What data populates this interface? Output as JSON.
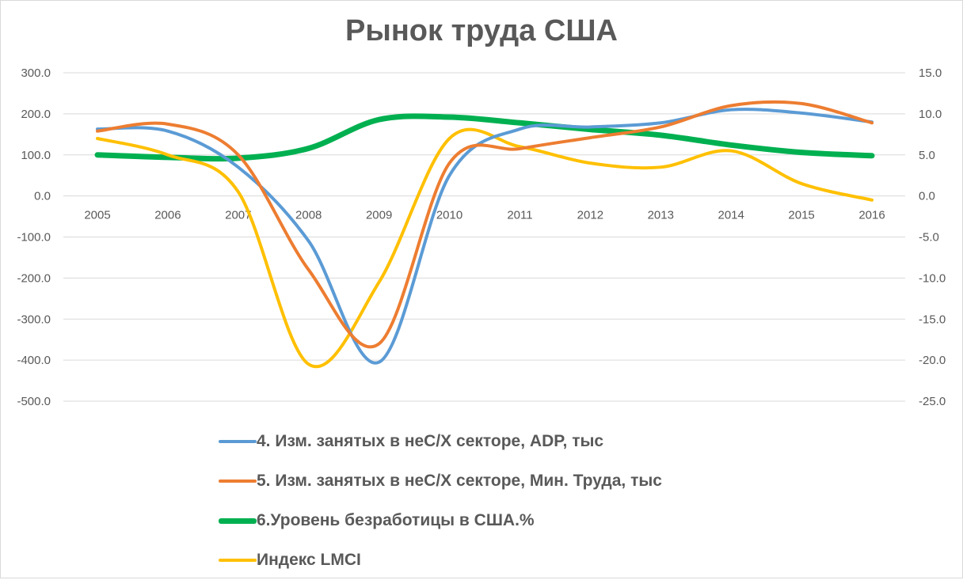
{
  "chart_data": {
    "type": "line",
    "title": "Рынок труда США",
    "categories": [
      "2005",
      "2006",
      "2007",
      "2008",
      "2009",
      "2010",
      "2011",
      "2012",
      "2013",
      "2014",
      "2015",
      "2016"
    ],
    "y_left": {
      "ylim": [
        -500,
        300
      ],
      "ticks": [
        "300.0",
        "200.0",
        "100.0",
        "0.0",
        "-100.0",
        "-200.0",
        "-300.0",
        "-400.0",
        "-500.0"
      ]
    },
    "y_right": {
      "ylim": [
        -25,
        15
      ],
      "ticks": [
        "15.0",
        "10.0",
        "5.0",
        "0.0",
        "-5.0",
        "-10.0",
        "-15.0",
        "-20.0",
        "-25.0"
      ]
    },
    "grid": true,
    "legend_position": "bottom",
    "series": [
      {
        "name": "4. Изм. занятых в неС/Х секторе, ADP, тыс",
        "axis": "left",
        "color": "#5b9bd5",
        "values": [
          163,
          158,
          70,
          -110,
          -405,
          50,
          163,
          168,
          178,
          210,
          202,
          180
        ]
      },
      {
        "name": "5. Изм. занятых в неС/Х секторе, Мин. Труда, тыс",
        "axis": "left",
        "color": "#ed7d31",
        "values": [
          158,
          175,
          100,
          -180,
          -360,
          80,
          115,
          142,
          168,
          220,
          225,
          178
        ]
      },
      {
        "name": "6.Уровень безработицы в США.%",
        "axis": "right",
        "color": "#00b050",
        "values": [
          5.0,
          4.7,
          4.6,
          5.8,
          9.3,
          9.6,
          8.9,
          8.1,
          7.4,
          6.2,
          5.3,
          4.9
        ]
      },
      {
        "name": "Индекс LMCI",
        "axis": "right",
        "color": "#ffc000",
        "values": [
          7.0,
          5.0,
          0.5,
          -20.5,
          -10.5,
          7.0,
          6.0,
          4.0,
          3.5,
          5.5,
          1.5,
          -0.5
        ]
      }
    ]
  }
}
